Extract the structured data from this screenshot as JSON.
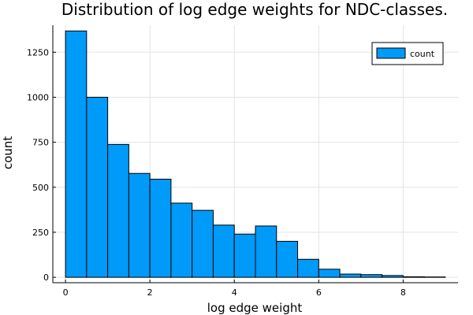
{
  "chart_data": {
    "type": "bar",
    "title": "Distribution of log edge weights for NDC-classes.",
    "xlabel": "log edge weight",
    "ylabel": "count",
    "xlim": [
      -0.3,
      9.3
    ],
    "ylim": [
      -30,
      1400
    ],
    "xticks": [
      0,
      2,
      4,
      6,
      8
    ],
    "yticks": [
      0,
      250,
      500,
      750,
      1000,
      1250
    ],
    "bin_width": 0.5,
    "bins": [
      {
        "x0": 0.0,
        "x1": 0.5,
        "value": 1368
      },
      {
        "x0": 0.5,
        "x1": 1.0,
        "value": 1000
      },
      {
        "x0": 1.0,
        "x1": 1.5,
        "value": 738
      },
      {
        "x0": 1.5,
        "x1": 2.0,
        "value": 577
      },
      {
        "x0": 2.0,
        "x1": 2.5,
        "value": 545
      },
      {
        "x0": 2.5,
        "x1": 3.0,
        "value": 412
      },
      {
        "x0": 3.0,
        "x1": 3.5,
        "value": 372
      },
      {
        "x0": 3.5,
        "x1": 4.0,
        "value": 290
      },
      {
        "x0": 4.0,
        "x1": 4.5,
        "value": 240
      },
      {
        "x0": 4.5,
        "x1": 5.0,
        "value": 285
      },
      {
        "x0": 5.0,
        "x1": 5.5,
        "value": 200
      },
      {
        "x0": 5.5,
        "x1": 6.0,
        "value": 100
      },
      {
        "x0": 6.0,
        "x1": 6.5,
        "value": 45
      },
      {
        "x0": 6.5,
        "x1": 7.0,
        "value": 18
      },
      {
        "x0": 7.0,
        "x1": 7.5,
        "value": 15
      },
      {
        "x0": 7.5,
        "x1": 8.0,
        "value": 10
      },
      {
        "x0": 8.0,
        "x1": 8.5,
        "value": 3
      },
      {
        "x0": 8.5,
        "x1": 9.0,
        "value": 2
      }
    ],
    "series": [
      {
        "name": "count",
        "color": "#009af9"
      }
    ],
    "grid": true,
    "legend": "top-right"
  }
}
